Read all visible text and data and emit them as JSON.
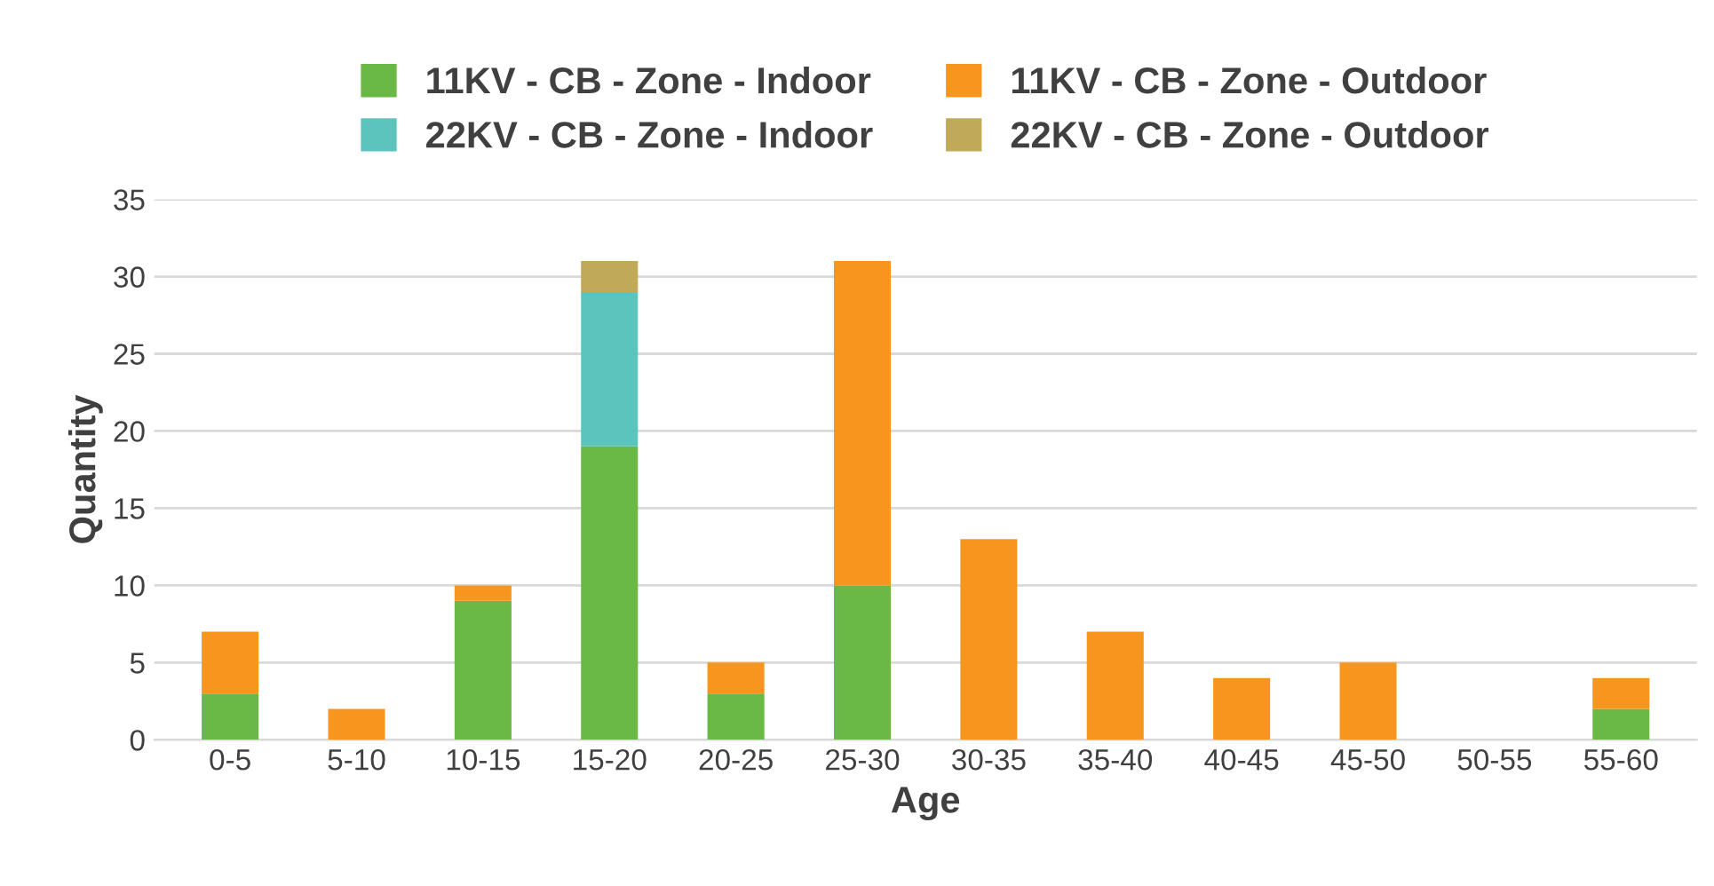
{
  "chart_data": {
    "type": "bar",
    "stacked": true,
    "xlabel": "Age",
    "ylabel": "Quantity",
    "categories": [
      "0-5",
      "5-10",
      "10-15",
      "15-20",
      "20-25",
      "25-30",
      "30-35",
      "35-40",
      "40-45",
      "45-50",
      "50-55",
      "55-60"
    ],
    "series": [
      {
        "name": "11KV - CB - Zone - Indoor",
        "color": "#6ab845",
        "values": [
          3,
          null,
          9,
          19,
          3,
          10,
          null,
          null,
          null,
          null,
          null,
          2
        ]
      },
      {
        "name": "11KV - CB - Zone - Outdoor",
        "color": "#f7961f",
        "values": [
          4,
          2,
          1,
          null,
          2,
          21,
          13,
          7,
          4,
          5,
          null,
          2
        ]
      },
      {
        "name": "22KV - CB - Zone - Indoor",
        "color": "#5cc4bd",
        "values": [
          null,
          null,
          null,
          10,
          null,
          null,
          null,
          null,
          null,
          null,
          null,
          null
        ]
      },
      {
        "name": "22KV - CB - Zone - Outdoor",
        "color": "#c1a95a",
        "values": [
          null,
          null,
          null,
          2,
          null,
          null,
          null,
          null,
          null,
          null,
          null,
          null
        ]
      }
    ],
    "ylim": [
      0,
      35
    ],
    "yticks": [
      0,
      5,
      10,
      15,
      20,
      25,
      30,
      35
    ],
    "grid": "y",
    "legend": "top"
  }
}
